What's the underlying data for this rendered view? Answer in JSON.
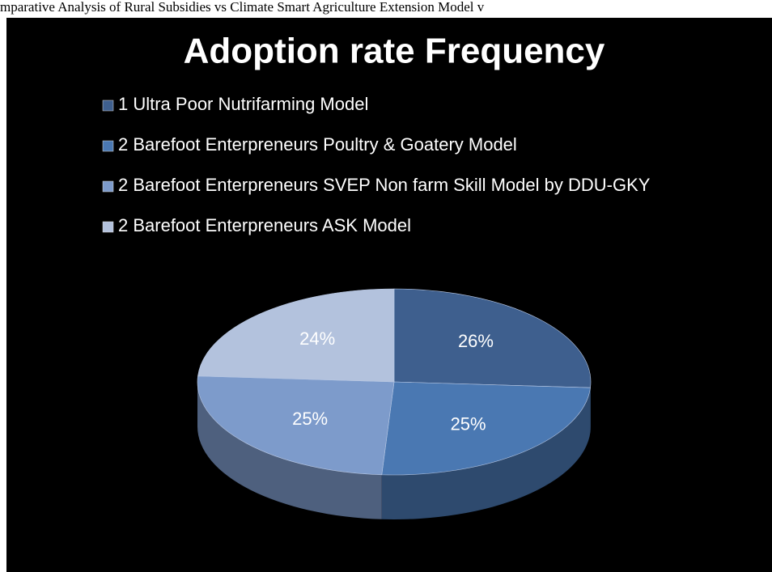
{
  "caption": "mparative Analysis of Rural Subsidies vs Climate Smart Agriculture Extension Model v",
  "chart_data": {
    "type": "pie3d",
    "title": "Adoption rate  Frequency",
    "categories": [
      "1 Ultra Poor Nutrifarming Model",
      "2 Barefoot Enterpreneurs Poultry & Goatery Model",
      "2 Barefoot Enterpreneurs SVEP Non farm Skill Model by DDU-GKY",
      "2 Barefoot Enterpreneurs ASK Model"
    ],
    "values": [
      26,
      25,
      25,
      24
    ],
    "value_labels": [
      "26%",
      "25%",
      "25%",
      "24%"
    ],
    "colors": [
      "#3e5f8e",
      "#4a78b2",
      "#7d9bcb",
      "#b3c2dd"
    ],
    "legend": "top"
  }
}
